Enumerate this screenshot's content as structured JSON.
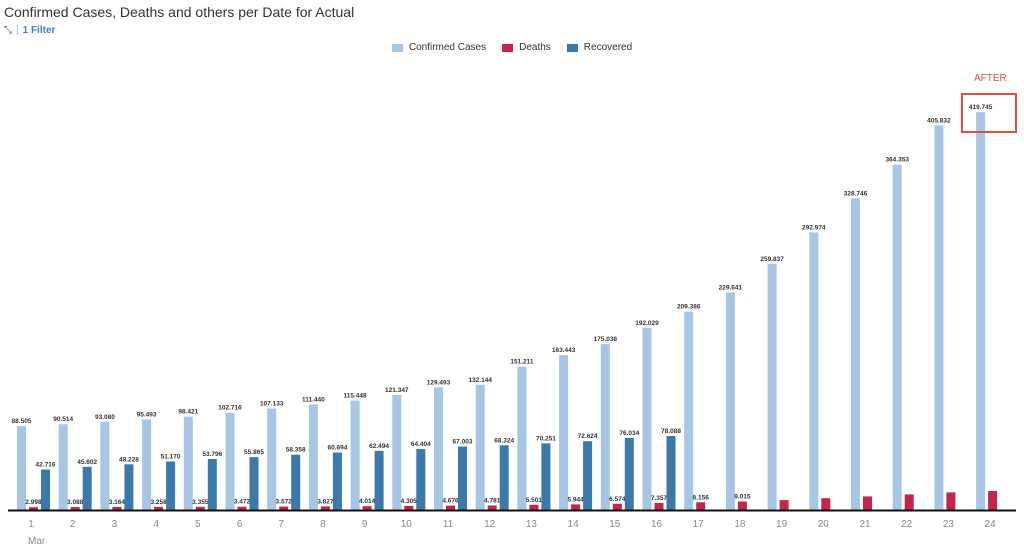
{
  "title": "Confirmed Cases, Deaths and others per Date for Actual",
  "filter": {
    "label": "1 Filter",
    "icon": "hierarchy-icon"
  },
  "annotation": {
    "label": "AFTER",
    "color": "#e2503b"
  },
  "chart_data": {
    "type": "bar",
    "categories": [
      "1",
      "2",
      "3",
      "4",
      "5",
      "6",
      "7",
      "8",
      "9",
      "10",
      "11",
      "12",
      "13",
      "14",
      "15",
      "16",
      "17",
      "18",
      "19",
      "20",
      "21",
      "22",
      "23",
      "24"
    ],
    "xlabel": "Mar",
    "ylabel": "",
    "ylim": [
      0,
      420000
    ],
    "grid": false,
    "legend_position": "top-center",
    "series": [
      {
        "name": "Confirmed Cases",
        "color": "#a7c6e6",
        "values": [
          88505,
          90514,
          93080,
          95493,
          98421,
          102716,
          107133,
          111440,
          115448,
          121347,
          129493,
          132144,
          151211,
          163443,
          175038,
          192029,
          209386,
          229641,
          259837,
          292974,
          328746,
          364353,
          405832,
          419745
        ],
        "labels": [
          "88.505",
          "90.514",
          "93.080",
          "95.493",
          "98.421",
          "102.716",
          "107.133",
          "111.440",
          "115.448",
          "121.347",
          "129.493",
          "132.144",
          "151.211",
          "163.443",
          "175.038",
          "192.029",
          "209.386",
          "229.641",
          "259.837",
          "292.974",
          "328.746",
          "364.353",
          "405.832",
          "419.745"
        ]
      },
      {
        "name": "Deaths",
        "color": "#c5254a",
        "values": [
          2998,
          3088,
          3164,
          3258,
          3355,
          3472,
          3572,
          3827,
          4014,
          4305,
          4676,
          4781,
          5501,
          5944,
          6574,
          7357,
          8156,
          9015,
          10500,
          12400,
          14400,
          16500,
          18600,
          20000
        ],
        "labels": [
          "2.998",
          "3.088",
          "3.164",
          "3.258",
          "3.355",
          "3.472",
          "3.572",
          "3.827",
          "4.014",
          "4.305",
          "4.676",
          "4.781",
          "5.501",
          "5.944",
          "6.574",
          "7.357",
          "8.156",
          "9.015",
          "",
          "",
          "",
          "",
          "",
          ""
        ]
      },
      {
        "name": "Recovered",
        "color": "#3a79aa",
        "values": [
          42716,
          45602,
          48228,
          51170,
          53796,
          55865,
          58358,
          60694,
          62494,
          64404,
          67003,
          68324,
          70251,
          72624,
          76034,
          78088,
          null,
          null,
          null,
          null,
          null,
          null,
          null,
          null
        ],
        "labels": [
          "42.716",
          "45.602",
          "48.228",
          "51.170",
          "53.796",
          "55.865",
          "58.358",
          "60.694",
          "62.494",
          "64.404",
          "67.003",
          "68.324",
          "70.251",
          "72.624",
          "76.034",
          "78.088",
          "",
          "",
          "",
          "",
          "",
          "",
          "",
          ""
        ]
      }
    ]
  }
}
